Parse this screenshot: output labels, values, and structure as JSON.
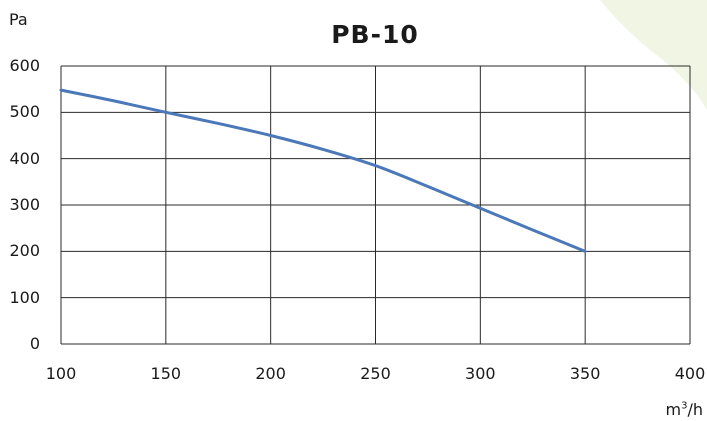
{
  "chart_data": {
    "type": "line",
    "title": "PB-10",
    "ylabel": "Pa",
    "xlabel": {
      "base": "m",
      "sup": "3",
      "rest": "/h"
    },
    "xlim": [
      100,
      400
    ],
    "ylim": [
      0,
      600
    ],
    "x_ticks": [
      "100",
      "150",
      "200",
      "250",
      "300",
      "350",
      "400"
    ],
    "y_ticks": [
      "0",
      "100",
      "200",
      "300",
      "400",
      "500",
      "600"
    ],
    "grid": true,
    "series": [
      {
        "color": "#4a78b8",
        "x": [
          100,
          125,
          150,
          175,
          200,
          225,
          250,
          275,
          300,
          325,
          350
        ],
        "y": [
          548,
          525,
          500,
          476,
          450,
          420,
          385,
          340,
          293,
          246,
          200
        ]
      }
    ]
  },
  "colors": {
    "grid": "#2a2a2a",
    "background_leaf": "#f1f6e4"
  }
}
